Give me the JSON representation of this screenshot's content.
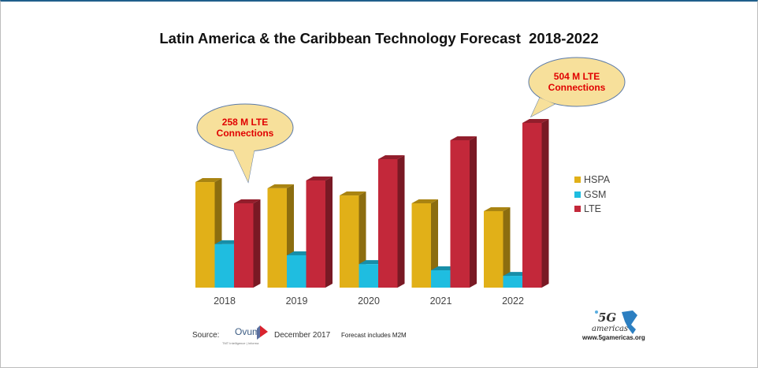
{
  "chart_data": {
    "type": "bar",
    "title": "Latin America & the Caribbean Technology Forecast  2018-2022",
    "xlabel": "",
    "ylabel": "",
    "categories": [
      "2018",
      "2019",
      "2020",
      "2021",
      "2022"
    ],
    "series": [
      {
        "name": "HSPA",
        "color": "#e1b018",
        "values": [
          323,
          304,
          282,
          258,
          234
        ]
      },
      {
        "name": "GSM",
        "color": "#1fbde0",
        "values": [
          133,
          99,
          72,
          53,
          36
        ]
      },
      {
        "name": "LTE",
        "color": "#c3283a",
        "values": [
          258,
          328,
          393,
          451,
          504
        ]
      }
    ],
    "ylim": [
      0,
      520
    ],
    "grid": false,
    "legend_position": "right",
    "annotations": [
      {
        "line1": "258 M LTE",
        "line2": "Connections",
        "points_to": "2018"
      },
      {
        "line1": "504 M LTE",
        "line2": "Connections",
        "points_to": "2022"
      }
    ]
  },
  "footer": {
    "source_label": "Source:",
    "source_brand": "Ovum",
    "source_brand_sub": "TMT Intelligence | Informa",
    "source_date": "December 2017",
    "note": "Forecast includes M2M",
    "logo_text": "5G americas",
    "url": "www.5gamericas.org"
  },
  "colors": {
    "frame_top": "#1f5f8b",
    "callout_fill": "#f7e09b",
    "callout_stroke": "#5b7aa8",
    "callout_text": "#e00000"
  }
}
